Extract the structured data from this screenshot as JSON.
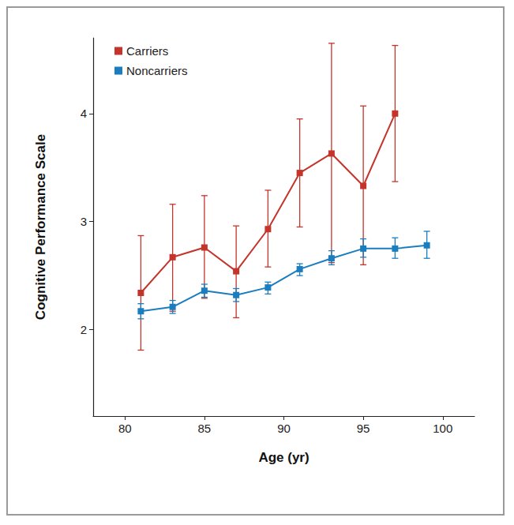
{
  "chart_data": {
    "type": "line",
    "xlabel": "Age (yr)",
    "ylabel": "Cognitive Performance Scale",
    "xlim": [
      78,
      102
    ],
    "xticks": [
      80,
      85,
      90,
      95,
      100
    ],
    "ylim": [
      1.2,
      4.7
    ],
    "yticks": [
      2,
      3,
      4
    ],
    "grid": false,
    "legend": "upper left",
    "marker": "square",
    "series": [
      {
        "name": "Carriers",
        "color": "#c4342b",
        "x": [
          81,
          83,
          85,
          87,
          89,
          91,
          93,
          95,
          97
        ],
        "values": [
          2.34,
          2.67,
          2.76,
          2.54,
          2.93,
          3.45,
          3.63,
          3.33,
          4.0
        ],
        "error_low": [
          1.81,
          2.17,
          2.29,
          2.11,
          2.58,
          2.95,
          2.62,
          2.6,
          3.37
        ],
        "error_high": [
          2.87,
          3.16,
          3.24,
          2.96,
          3.29,
          3.95,
          4.65,
          4.07,
          4.63
        ]
      },
      {
        "name": "Noncarriers",
        "color": "#1a7dc0",
        "x": [
          81,
          83,
          85,
          87,
          89,
          91,
          93,
          95,
          97,
          99
        ],
        "values": [
          2.17,
          2.21,
          2.36,
          2.32,
          2.39,
          2.56,
          2.66,
          2.75,
          2.75,
          2.78
        ],
        "error_low": [
          2.1,
          2.15,
          2.3,
          2.26,
          2.33,
          2.5,
          2.6,
          2.67,
          2.66,
          2.66
        ],
        "error_high": [
          2.24,
          2.27,
          2.42,
          2.38,
          2.44,
          2.61,
          2.73,
          2.84,
          2.85,
          2.91
        ]
      }
    ]
  }
}
